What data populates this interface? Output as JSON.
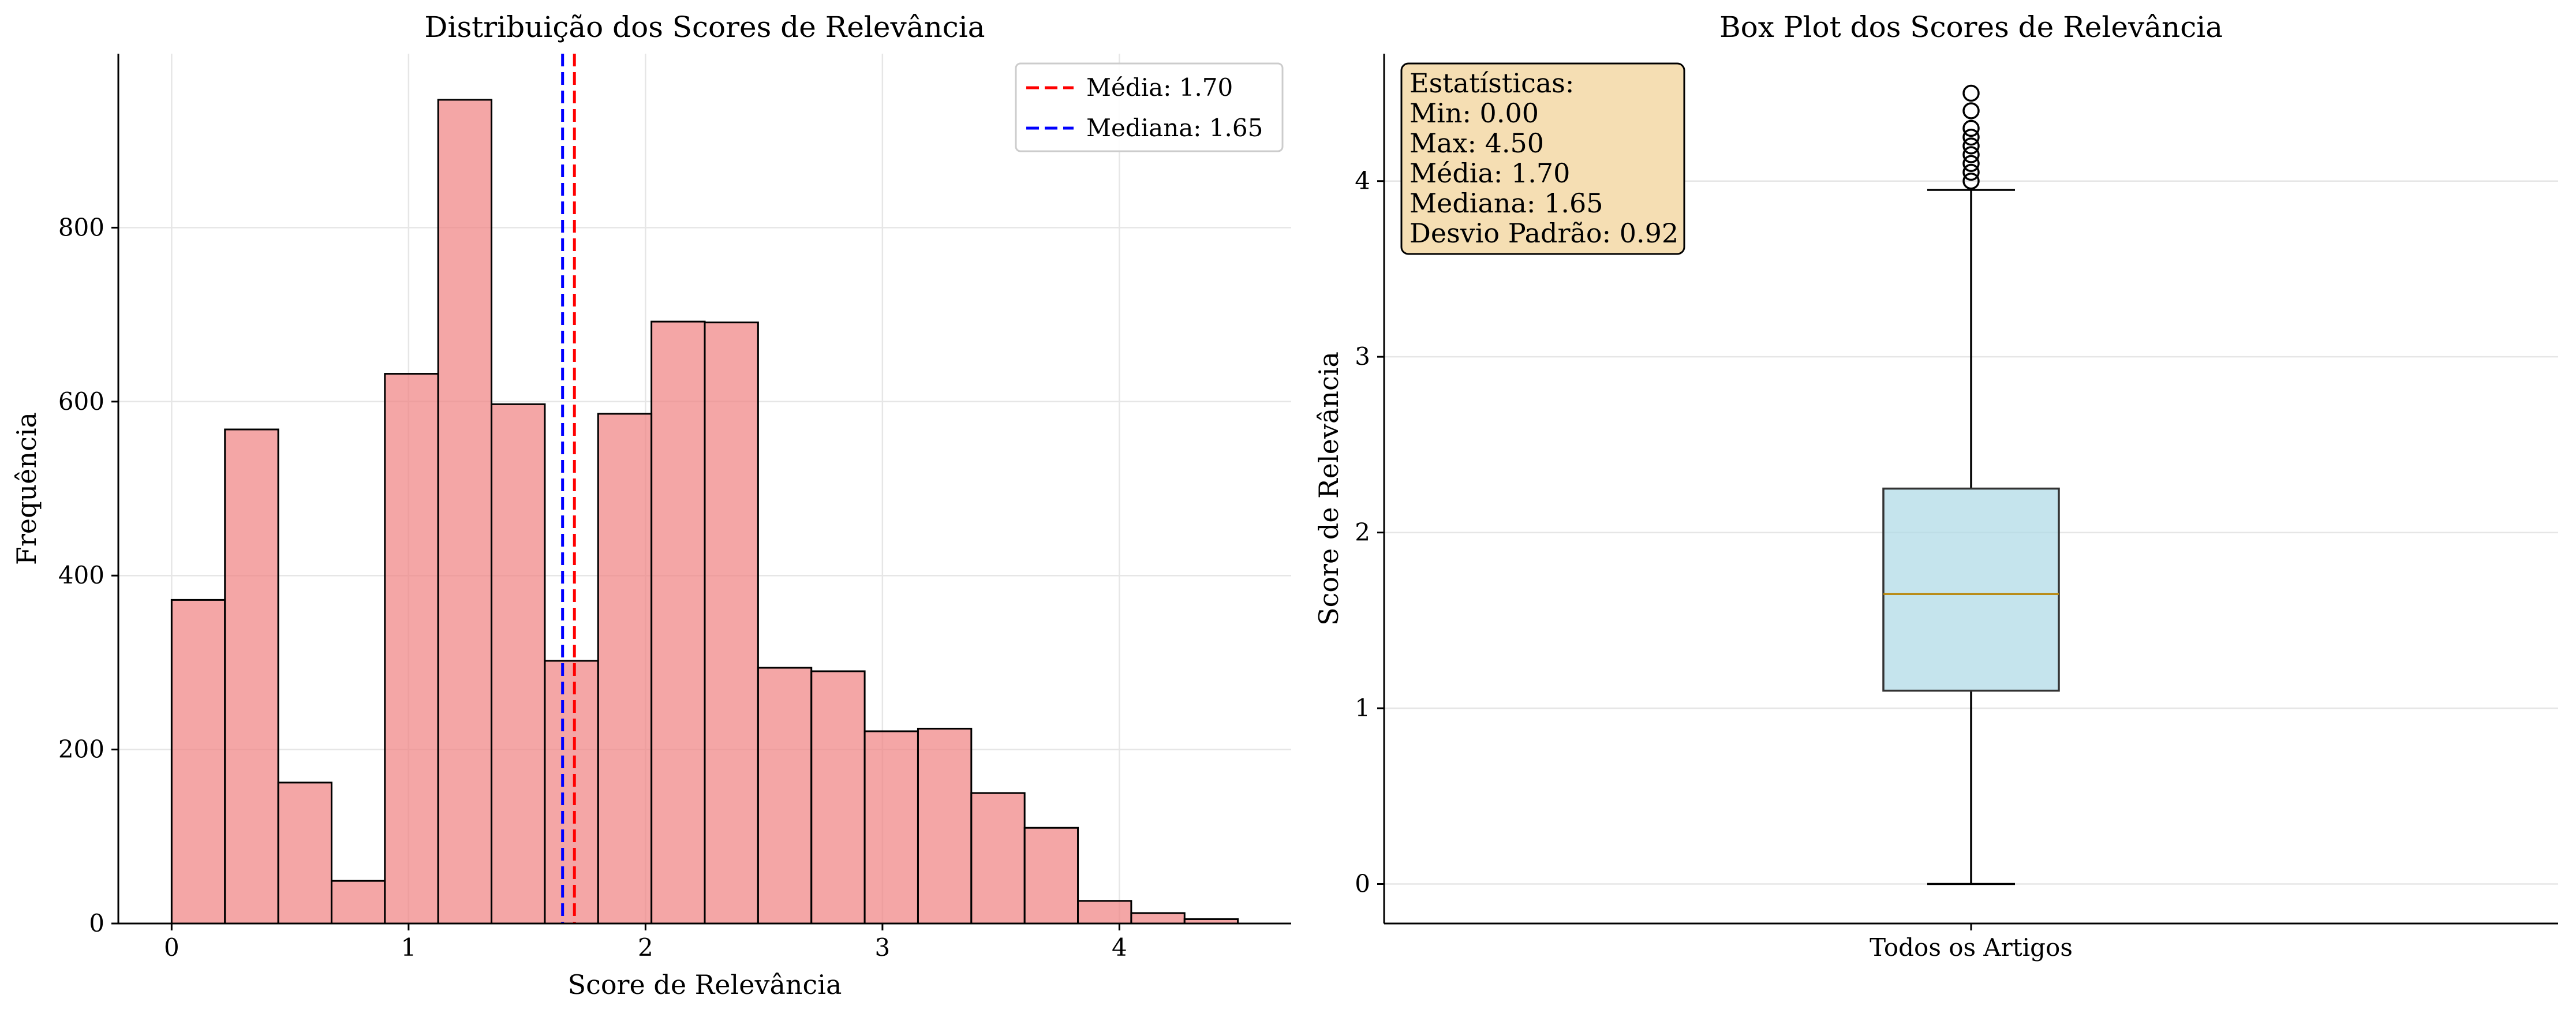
{
  "chart_data": [
    {
      "type": "bar",
      "subtype": "histogram",
      "title": "Distribuição dos Scores de Relevância",
      "xlabel": "Score de Relevância",
      "ylabel": "Frequência",
      "xlim": [
        -0.225,
        4.725
      ],
      "ylim": [
        0,
        1000
      ],
      "xticks": [
        0,
        1,
        2,
        3,
        4
      ],
      "yticks": [
        0,
        200,
        400,
        600,
        800
      ],
      "grid": true,
      "bin_width": 0.225,
      "bin_edges": [
        0,
        0.225,
        0.45,
        0.675,
        0.9,
        1.125,
        1.35,
        1.575,
        1.8,
        2.025,
        2.25,
        2.475,
        2.7,
        2.925,
        3.15,
        3.375,
        3.6,
        3.825,
        4.05,
        4.275,
        4.5
      ],
      "values": [
        372,
        568,
        162,
        49,
        632,
        947,
        597,
        302,
        586,
        692,
        691,
        294,
        290,
        221,
        224,
        150,
        110,
        26,
        12,
        5
      ],
      "bar_color": "#f08080",
      "bar_edge_color": "#000000",
      "vlines": [
        {
          "label": "Média: 1.70",
          "x": 1.7,
          "color": "#ff0000"
        },
        {
          "label": "Mediana: 1.65",
          "x": 1.65,
          "color": "#0000ff"
        }
      ],
      "legend_position": "upper right"
    },
    {
      "type": "box",
      "title": "Box Plot dos Scores de Relevância",
      "xlabel": "",
      "ylabel": "Score de Relevância",
      "categories": [
        "Todos os Artigos"
      ],
      "ylim": [
        -0.225,
        4.725
      ],
      "yticks": [
        0,
        1,
        2,
        3,
        4
      ],
      "grid": true,
      "box": {
        "whisker_low": 0.0,
        "q1": 1.1,
        "median": 1.65,
        "q3": 2.25,
        "whisker_high": 3.95,
        "outliers": [
          4.0,
          4.05,
          4.1,
          4.15,
          4.2,
          4.25,
          4.3,
          4.4,
          4.5
        ]
      },
      "box_color": "#add8e6",
      "median_color": "#b8860b",
      "stats_box": {
        "background": "#f5deb3",
        "lines": [
          "Estatísticas:",
          "Min: 0.00",
          "Max: 4.50",
          "Média: 1.70",
          "Mediana: 1.65",
          "Desvio Padrão: 0.92"
        ],
        "position": "upper left"
      }
    }
  ]
}
